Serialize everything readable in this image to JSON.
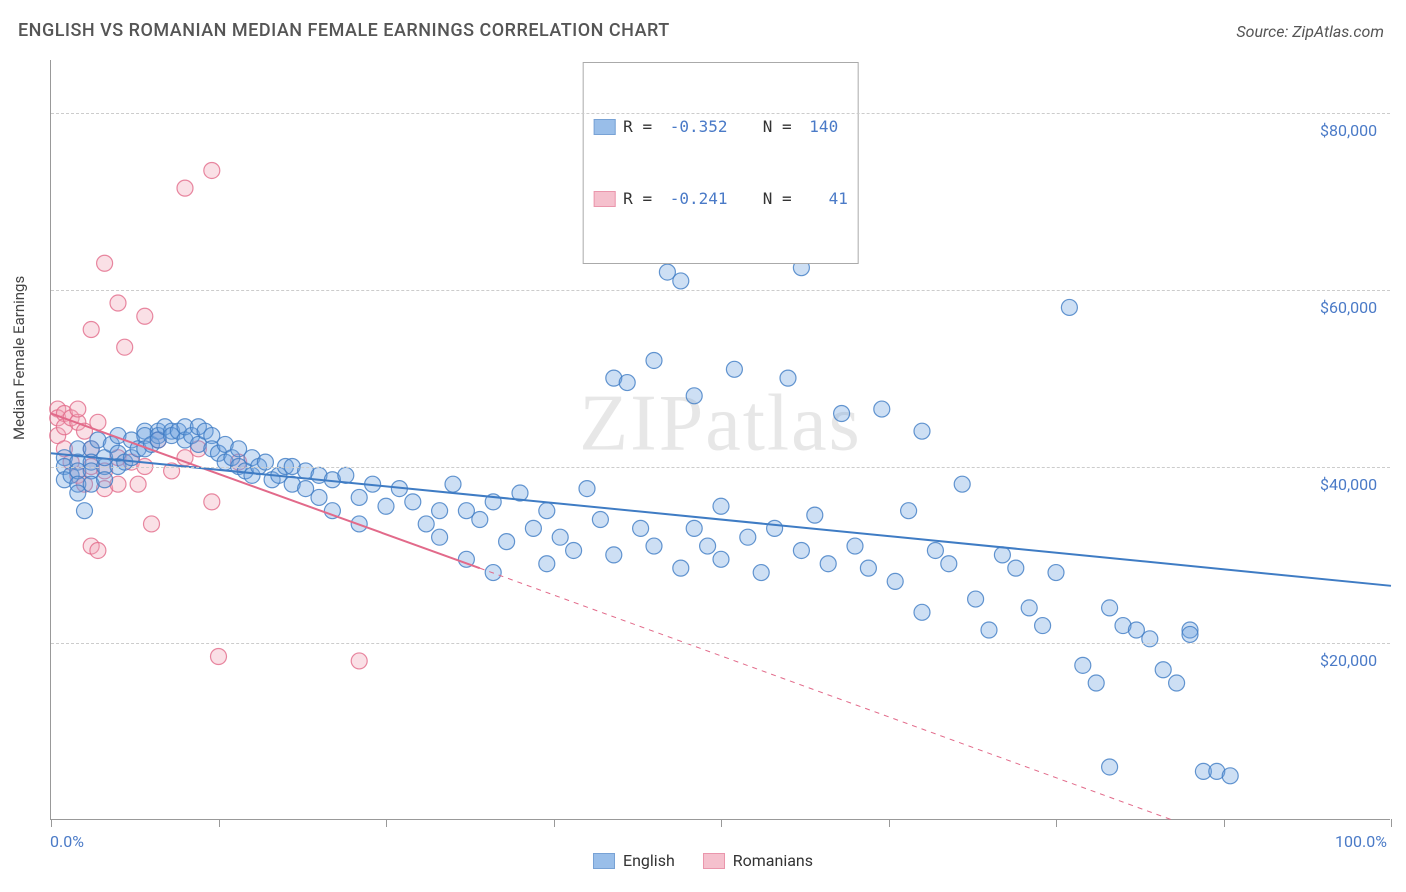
{
  "title": "ENGLISH VS ROMANIAN MEDIAN FEMALE EARNINGS CORRELATION CHART",
  "source": "Source: ZipAtlas.com",
  "watermark": "ZIPatlas",
  "chart": {
    "type": "scatter",
    "ylabel": "Median Female Earnings",
    "xlim": [
      0,
      100
    ],
    "ylim": [
      0,
      86000
    ],
    "x_tick_labels": {
      "0": "0.0%",
      "100": "100.0%"
    },
    "x_ticks": [
      0,
      12.5,
      25,
      37.5,
      50,
      62.5,
      75,
      87.5,
      100
    ],
    "y_gridlines": [
      20000,
      40000,
      60000,
      80000
    ],
    "y_tick_labels": {
      "20000": "$20,000",
      "40000": "$40,000",
      "60000": "$60,000",
      "80000": "$80,000"
    },
    "background_color": "#ffffff",
    "grid_color": "#cccccc",
    "axis_color": "#999999",
    "tick_label_color": "#4a7ac7",
    "label_fontsize": 15,
    "tick_fontsize": 16,
    "marker_radius": 8,
    "marker_fill_opacity": 0.35,
    "marker_stroke_opacity": 0.8,
    "line_width_solid": 2,
    "line_width_dashed": 1,
    "line_dash": "5,5"
  },
  "series": {
    "english": {
      "label": "English",
      "color": "#6fa3e0",
      "stroke": "#3f7cc4",
      "R": "-0.352",
      "N": "140",
      "trend_solid": {
        "x1": 0,
        "y1": 41500,
        "x2": 100,
        "y2": 26500
      },
      "trend_dashed": null,
      "points": [
        [
          1,
          41000
        ],
        [
          1,
          40000
        ],
        [
          1,
          38500
        ],
        [
          1.5,
          39000
        ],
        [
          2,
          42000
        ],
        [
          2,
          40500
        ],
        [
          2,
          39500
        ],
        [
          2,
          38000
        ],
        [
          2,
          37000
        ],
        [
          2.5,
          35000
        ],
        [
          3,
          42000
        ],
        [
          3,
          40500
        ],
        [
          3,
          39500
        ],
        [
          3,
          38000
        ],
        [
          3.5,
          43000
        ],
        [
          4,
          40000
        ],
        [
          4,
          41000
        ],
        [
          4,
          38500
        ],
        [
          4.5,
          42500
        ],
        [
          5,
          40000
        ],
        [
          5,
          43500
        ],
        [
          5,
          41500
        ],
        [
          5.5,
          40500
        ],
        [
          6,
          43000
        ],
        [
          6,
          41000
        ],
        [
          6.5,
          42000
        ],
        [
          7,
          44000
        ],
        [
          7,
          43500
        ],
        [
          7,
          42000
        ],
        [
          7.5,
          42500
        ],
        [
          8,
          44000
        ],
        [
          8,
          43500
        ],
        [
          8,
          43000
        ],
        [
          8.5,
          44500
        ],
        [
          9,
          44000
        ],
        [
          9,
          43500
        ],
        [
          9.5,
          44000
        ],
        [
          10,
          43000
        ],
        [
          10,
          44500
        ],
        [
          10.5,
          43500
        ],
        [
          11,
          44500
        ],
        [
          11,
          42500
        ],
        [
          11.5,
          44000
        ],
        [
          12,
          43500
        ],
        [
          12,
          42000
        ],
        [
          12.5,
          41500
        ],
        [
          13,
          42500
        ],
        [
          13,
          40500
        ],
        [
          13.5,
          41000
        ],
        [
          14,
          40000
        ],
        [
          14,
          42000
        ],
        [
          14.5,
          39500
        ],
        [
          15,
          41000
        ],
        [
          15,
          39000
        ],
        [
          15.5,
          40000
        ],
        [
          16,
          40500
        ],
        [
          16.5,
          38500
        ],
        [
          17,
          39000
        ],
        [
          17.5,
          40000
        ],
        [
          18,
          38000
        ],
        [
          18,
          40000
        ],
        [
          19,
          39500
        ],
        [
          19,
          37500
        ],
        [
          20,
          39000
        ],
        [
          20,
          36500
        ],
        [
          21,
          38500
        ],
        [
          21,
          35000
        ],
        [
          22,
          39000
        ],
        [
          23,
          36500
        ],
        [
          23,
          33500
        ],
        [
          24,
          38000
        ],
        [
          25,
          35500
        ],
        [
          26,
          37500
        ],
        [
          27,
          36000
        ],
        [
          28,
          33500
        ],
        [
          29,
          35000
        ],
        [
          29,
          32000
        ],
        [
          30,
          38000
        ],
        [
          31,
          35000
        ],
        [
          31,
          29500
        ],
        [
          32,
          34000
        ],
        [
          33,
          36000
        ],
        [
          33,
          28000
        ],
        [
          34,
          31500
        ],
        [
          35,
          37000
        ],
        [
          36,
          33000
        ],
        [
          37,
          35000
        ],
        [
          37,
          29000
        ],
        [
          38,
          32000
        ],
        [
          39,
          30500
        ],
        [
          40,
          37500
        ],
        [
          41,
          34000
        ],
        [
          42,
          30000
        ],
        [
          42,
          50000
        ],
        [
          43,
          49500
        ],
        [
          44,
          33000
        ],
        [
          45,
          52000
        ],
        [
          45,
          31000
        ],
        [
          46,
          62000
        ],
        [
          47,
          61000
        ],
        [
          47,
          28500
        ],
        [
          48,
          48000
        ],
        [
          48,
          33000
        ],
        [
          49,
          31000
        ],
        [
          50,
          35500
        ],
        [
          50,
          29500
        ],
        [
          51,
          51000
        ],
        [
          52,
          32000
        ],
        [
          53,
          28000
        ],
        [
          54,
          33000
        ],
        [
          55,
          50000
        ],
        [
          56,
          30500
        ],
        [
          56,
          62500
        ],
        [
          57,
          34500
        ],
        [
          58,
          29000
        ],
        [
          59,
          46000
        ],
        [
          60,
          31000
        ],
        [
          61,
          28500
        ],
        [
          62,
          46500
        ],
        [
          63,
          27000
        ],
        [
          64,
          35000
        ],
        [
          65,
          44000
        ],
        [
          65,
          23500
        ],
        [
          66,
          30500
        ],
        [
          67,
          29000
        ],
        [
          68,
          38000
        ],
        [
          69,
          25000
        ],
        [
          70,
          21500
        ],
        [
          71,
          30000
        ],
        [
          72,
          28500
        ],
        [
          73,
          24000
        ],
        [
          74,
          22000
        ],
        [
          75,
          28000
        ],
        [
          76,
          58000
        ],
        [
          77,
          17500
        ],
        [
          78,
          15500
        ],
        [
          79,
          24000
        ],
        [
          79,
          6000
        ],
        [
          80,
          22000
        ],
        [
          81,
          21500
        ],
        [
          82,
          20500
        ],
        [
          83,
          17000
        ],
        [
          84,
          15500
        ],
        [
          85,
          21500
        ],
        [
          85,
          21000
        ],
        [
          86,
          5500
        ],
        [
          87,
          5500
        ],
        [
          88,
          5000
        ]
      ]
    },
    "romanians": {
      "label": "Romanians",
      "color": "#f2a6b8",
      "stroke": "#e26a8a",
      "R": "-0.241",
      "N": "41",
      "trend_solid": {
        "x1": 0,
        "y1": 46000,
        "x2": 32,
        "y2": 28500
      },
      "trend_dashed": {
        "x1": 32,
        "y1": 28500,
        "x2": 100,
        "y2": -9000
      },
      "points": [
        [
          0.5,
          46500
        ],
        [
          0.5,
          45500
        ],
        [
          0.5,
          43500
        ],
        [
          1,
          46000
        ],
        [
          1,
          44500
        ],
        [
          1,
          42000
        ],
        [
          1.5,
          45500
        ],
        [
          1.5,
          40500
        ],
        [
          2,
          45000
        ],
        [
          2,
          46500
        ],
        [
          2,
          39000
        ],
        [
          2.5,
          44000
        ],
        [
          2.5,
          38000
        ],
        [
          3,
          55500
        ],
        [
          3,
          42000
        ],
        [
          3,
          40000
        ],
        [
          3,
          31000
        ],
        [
          3.5,
          45000
        ],
        [
          3.5,
          30500
        ],
        [
          4,
          63000
        ],
        [
          4,
          39500
        ],
        [
          4,
          37500
        ],
        [
          5,
          58500
        ],
        [
          5,
          41000
        ],
        [
          5,
          38000
        ],
        [
          5.5,
          53500
        ],
        [
          6,
          40500
        ],
        [
          6.5,
          38000
        ],
        [
          7,
          57000
        ],
        [
          7,
          40000
        ],
        [
          7.5,
          33500
        ],
        [
          8,
          43000
        ],
        [
          9,
          39500
        ],
        [
          10,
          71500
        ],
        [
          10,
          41000
        ],
        [
          11,
          42000
        ],
        [
          12,
          73500
        ],
        [
          12,
          36000
        ],
        [
          12.5,
          18500
        ],
        [
          14,
          40500
        ],
        [
          23,
          18000
        ]
      ]
    }
  },
  "legend_top_text": {
    "r_prefix": "R = ",
    "n_prefix": "N = "
  }
}
